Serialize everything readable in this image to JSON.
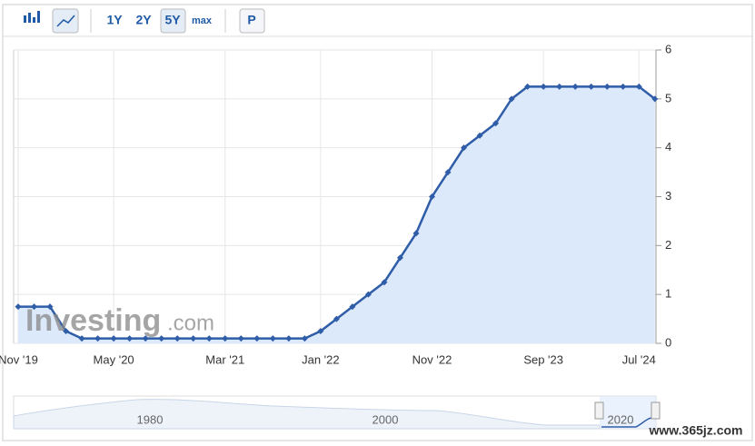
{
  "toolbar": {
    "ranges": [
      "1Y",
      "2Y",
      "5Y",
      "max"
    ],
    "mode": "P"
  },
  "watermark": {
    "brand": "Investing",
    "suffix": ".com"
  },
  "navigator": {
    "labels": [
      "1980",
      "2000",
      "2020"
    ]
  },
  "site": "www.365jz.com",
  "chart_data": {
    "type": "area",
    "color": "#2f5da8",
    "fill": "#dbe9fb",
    "grid": true,
    "y_axis_side": "right",
    "categories": [
      "Nov '19",
      null,
      null,
      null,
      null,
      null,
      "May '20",
      null,
      null,
      null,
      null,
      null,
      null,
      "Mar '21",
      null,
      null,
      null,
      null,
      null,
      "Jan '22",
      null,
      null,
      null,
      null,
      null,
      null,
      "Nov '22",
      null,
      null,
      null,
      null,
      null,
      null,
      "Sep '23",
      null,
      null,
      null,
      null,
      null,
      "Jul '24",
      null
    ],
    "values": [
      0.75,
      0.75,
      0.75,
      0.25,
      0.1,
      0.1,
      0.1,
      0.1,
      0.1,
      0.1,
      0.1,
      0.1,
      0.1,
      0.1,
      0.1,
      0.1,
      0.1,
      0.1,
      0.1,
      0.25,
      0.5,
      0.75,
      1.0,
      1.25,
      1.75,
      2.25,
      3.0,
      3.5,
      4.0,
      4.25,
      4.5,
      5.0,
      5.25,
      5.25,
      5.25,
      5.25,
      5.25,
      5.25,
      5.25,
      5.25,
      5.0
    ],
    "ylim": [
      0,
      6
    ],
    "yticks": [
      0,
      1,
      2,
      3,
      4,
      5,
      6
    ]
  }
}
